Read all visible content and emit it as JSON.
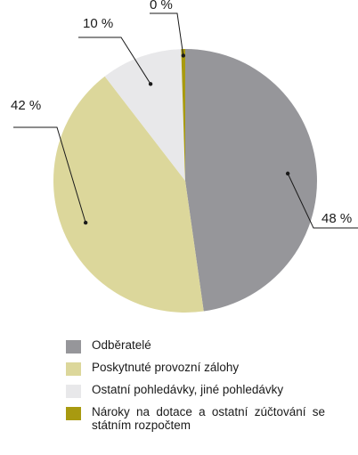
{
  "chart_data": {
    "type": "pie",
    "categories": [
      "Odběratelé",
      "Poskytnuté provozní zálohy",
      "Ostatní pohledávky, jiné pohledávky",
      "Nároky na dotace a ostatní zúčtování se státním rozpočtem"
    ],
    "values": [
      48,
      42,
      10,
      0.5
    ],
    "data_labels": [
      "48 %",
      "42 %",
      "10 %",
      "0 %"
    ],
    "colors": [
      "#96969a",
      "#dcd79b",
      "#e8e8ea",
      "#a89a10"
    ],
    "legend_position": "bottom"
  }
}
